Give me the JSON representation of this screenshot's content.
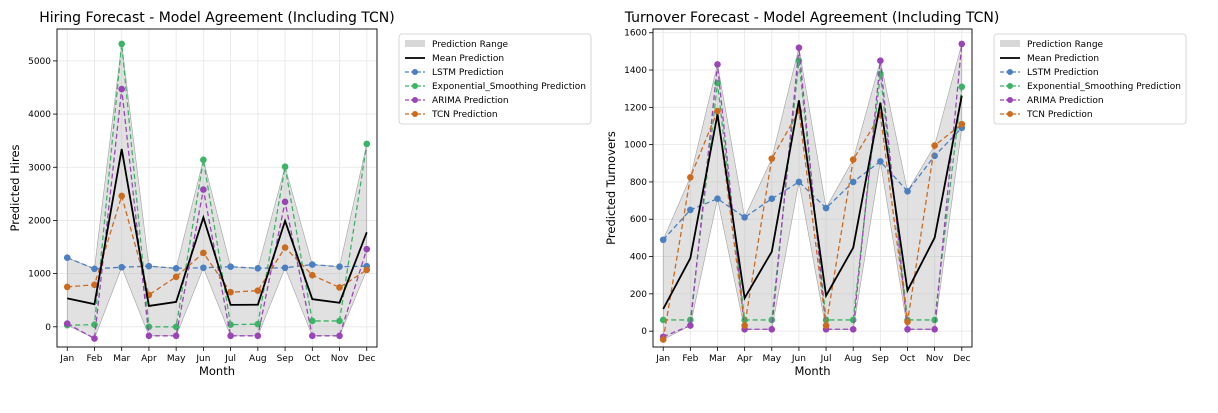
{
  "chart_data": [
    {
      "type": "line",
      "title": "Hiring Forecast - Model Agreement (Including TCN)",
      "xlabel": "Month",
      "ylabel": "Predicted Hires",
      "categories": [
        "Jan",
        "Feb",
        "Mar",
        "Apr",
        "May",
        "Jun",
        "Jul",
        "Aug",
        "Sep",
        "Oct",
        "Nov",
        "Dec"
      ],
      "yticks": [
        0,
        1000,
        2000,
        3000,
        4000,
        5000
      ],
      "ylim": [
        -380,
        5600
      ],
      "grid": true,
      "legend_position": "outside-right",
      "range_label": "Prediction Range",
      "mean_label": "Mean Prediction",
      "series": [
        {
          "name": "LSTM Prediction",
          "color": "#4a7fc1",
          "values": [
            1300,
            1090,
            1120,
            1140,
            1100,
            1110,
            1130,
            1100,
            1110,
            1170,
            1130,
            1140
          ]
        },
        {
          "name": "Exponential_Smoothing Prediction",
          "color": "#3cb465",
          "values": [
            30,
            40,
            5320,
            0,
            0,
            3140,
            40,
            50,
            3010,
            110,
            110,
            3440
          ]
        },
        {
          "name": "ARIMA Prediction",
          "color": "#9b44b8",
          "values": [
            60,
            -220,
            4470,
            -170,
            -170,
            2580,
            -170,
            -170,
            2350,
            -170,
            -170,
            1460
          ]
        },
        {
          "name": "TCN Prediction",
          "color": "#cc6a1e",
          "values": [
            750,
            790,
            2460,
            600,
            940,
            1390,
            650,
            680,
            1490,
            970,
            740,
            1070
          ]
        }
      ]
    },
    {
      "type": "line",
      "title": "Turnover Forecast - Model Agreement (Including TCN)",
      "xlabel": "Month",
      "ylabel": "Predicted Turnovers",
      "categories": [
        "Jan",
        "Feb",
        "Mar",
        "Apr",
        "May",
        "Jun",
        "Jul",
        "Aug",
        "Sep",
        "Oct",
        "Nov",
        "Dec"
      ],
      "yticks": [
        0,
        200,
        400,
        600,
        800,
        1000,
        1200,
        1400,
        1600
      ],
      "ylim": [
        -85,
        1620
      ],
      "grid": true,
      "legend_position": "outside-right",
      "range_label": "Prediction Range",
      "mean_label": "Mean Prediction",
      "series": [
        {
          "name": "LSTM Prediction",
          "color": "#4a7fc1",
          "values": [
            490,
            650,
            710,
            610,
            710,
            800,
            660,
            800,
            910,
            750,
            940,
            1090
          ]
        },
        {
          "name": "Exponential_Smoothing Prediction",
          "color": "#3cb465",
          "values": [
            60,
            60,
            1330,
            60,
            60,
            1450,
            60,
            60,
            1380,
            60,
            60,
            1310
          ]
        },
        {
          "name": "ARIMA Prediction",
          "color": "#9b44b8",
          "values": [
            -30,
            30,
            1430,
            10,
            10,
            1520,
            10,
            10,
            1450,
            10,
            10,
            1540
          ]
        },
        {
          "name": "TCN Prediction",
          "color": "#cc6a1e",
          "values": [
            -45,
            825,
            1180,
            30,
            925,
            1180,
            30,
            920,
            1160,
            50,
            995,
            1110
          ]
        }
      ]
    }
  ]
}
